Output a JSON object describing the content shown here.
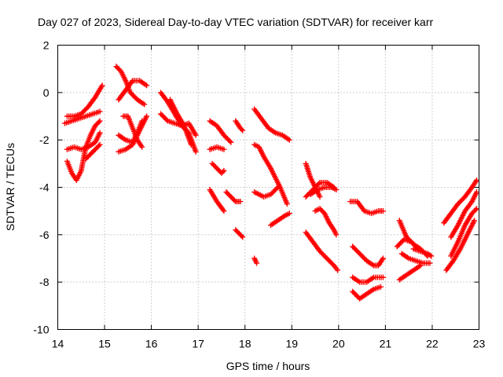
{
  "chart_data": {
    "type": "scatter",
    "title": "Day 027 of 2023, Sidereal Day-to-day VTEC variation (SDTVAR) for receiver karr",
    "xlabel": "GPS time / hours",
    "ylabel": "SDTVAR / TECUs",
    "xlim": [
      14,
      23
    ],
    "ylim": [
      -10,
      2
    ],
    "xticks": [
      "14",
      "15",
      "16",
      "17",
      "18",
      "19",
      "20",
      "21",
      "22",
      "23"
    ],
    "yticks": [
      "-10",
      "-8",
      "-6",
      "-4",
      "-2",
      "0",
      "2"
    ],
    "grid": true,
    "marker": "+",
    "color": "#ff0000",
    "series": [
      {
        "name": "arc-1",
        "x": [
          14.2,
          14.35,
          14.5,
          14.65,
          14.8,
          14.95
        ],
        "y": [
          -1.0,
          -1.0,
          -0.9,
          -0.6,
          -0.2,
          0.3
        ]
      },
      {
        "name": "arc-2",
        "x": [
          14.15,
          14.3,
          14.45,
          14.6,
          14.75,
          14.9
        ],
        "y": [
          -1.3,
          -1.2,
          -1.1,
          -1.0,
          -0.9,
          -0.8
        ]
      },
      {
        "name": "arc-3",
        "x": [
          14.2,
          14.35,
          14.5,
          14.65,
          14.8,
          14.9
        ],
        "y": [
          -2.4,
          -2.3,
          -2.4,
          -2.3,
          -2.1,
          -1.7
        ]
      },
      {
        "name": "arc-4",
        "x": [
          14.2,
          14.3,
          14.4,
          14.5,
          14.6,
          14.7,
          14.8,
          14.9
        ],
        "y": [
          -2.9,
          -3.4,
          -3.7,
          -3.3,
          -2.3,
          -1.8,
          -1.4,
          -1.2
        ]
      },
      {
        "name": "arc-5",
        "x": [
          14.6,
          14.7,
          14.8,
          14.9
        ],
        "y": [
          -2.8,
          -2.6,
          -2.4,
          -2.2
        ]
      },
      {
        "name": "arc-6",
        "x": [
          15.25,
          15.35,
          15.45,
          15.55,
          15.7,
          15.85
        ],
        "y": [
          1.1,
          0.9,
          0.5,
          0.0,
          -0.3,
          -0.5
        ]
      },
      {
        "name": "arc-7",
        "x": [
          15.3,
          15.45,
          15.6,
          15.75,
          15.9
        ],
        "y": [
          -0.3,
          0.1,
          0.5,
          0.5,
          0.3
        ]
      },
      {
        "name": "arc-8",
        "x": [
          15.3,
          15.45,
          15.6,
          15.7,
          15.8,
          15.9
        ],
        "y": [
          -2.5,
          -2.4,
          -2.2,
          -1.8,
          -1.4,
          -1.0
        ]
      },
      {
        "name": "arc-9",
        "x": [
          15.3,
          15.45,
          15.6,
          15.7,
          15.8
        ],
        "y": [
          -1.8,
          -2.0,
          -2.1,
          -1.7,
          -1.2
        ]
      },
      {
        "name": "arc-10",
        "x": [
          15.4,
          15.5,
          15.6,
          15.7,
          15.8
        ],
        "y": [
          -1.0,
          -1.0,
          -1.5,
          -2.0,
          -2.3
        ]
      },
      {
        "name": "arc-11",
        "x": [
          16.2,
          16.35,
          16.5,
          16.65,
          16.8,
          16.95
        ],
        "y": [
          0.0,
          -0.4,
          -0.9,
          -1.4,
          -1.7,
          -2.5
        ]
      },
      {
        "name": "arc-12",
        "x": [
          16.2,
          16.35,
          16.5,
          16.65,
          16.8,
          16.95
        ],
        "y": [
          -0.9,
          -1.2,
          -1.3,
          -1.4,
          -1.3,
          -1.8
        ]
      },
      {
        "name": "arc-13",
        "x": [
          16.4,
          16.55,
          16.7,
          16.85
        ],
        "y": [
          -0.3,
          -0.9,
          -1.4,
          -2.2
        ]
      },
      {
        "name": "arc-14",
        "x": [
          17.25,
          17.4,
          17.55,
          17.7
        ],
        "y": [
          -1.2,
          -1.4,
          -1.8,
          -2.1
        ]
      },
      {
        "name": "arc-15",
        "x": [
          17.25,
          17.4,
          17.55
        ],
        "y": [
          -2.4,
          -2.3,
          -2.4
        ]
      },
      {
        "name": "arc-16",
        "x": [
          17.3,
          17.4,
          17.5,
          17.55
        ],
        "y": [
          -3.0,
          -3.2,
          -3.4,
          -3.3
        ]
      },
      {
        "name": "arc-17",
        "x": [
          17.25,
          17.4,
          17.55
        ],
        "y": [
          -4.1,
          -4.6,
          -5.0
        ]
      },
      {
        "name": "arc-18",
        "x": [
          17.6,
          17.7,
          17.8,
          17.9
        ],
        "y": [
          -4.2,
          -4.4,
          -4.6,
          -4.6
        ]
      },
      {
        "name": "arc-19",
        "x": [
          17.8,
          17.9,
          17.95
        ],
        "y": [
          -5.8,
          -6.0,
          -6.1
        ]
      },
      {
        "name": "arc-20",
        "x": [
          17.8,
          17.9,
          17.95
        ],
        "y": [
          -1.2,
          -1.5,
          -1.6
        ]
      },
      {
        "name": "arc-21",
        "x": [
          18.2,
          18.35,
          18.5,
          18.65,
          18.8,
          18.95
        ],
        "y": [
          -0.7,
          -1.1,
          -1.5,
          -1.7,
          -1.8,
          -2.0
        ]
      },
      {
        "name": "arc-22",
        "x": [
          18.2,
          18.3,
          18.4,
          18.55,
          18.65,
          18.75,
          18.9
        ],
        "y": [
          -2.2,
          -2.3,
          -2.7,
          -3.2,
          -3.6,
          -4.0,
          -4.7
        ]
      },
      {
        "name": "arc-23",
        "x": [
          18.2,
          18.4,
          18.55,
          18.7
        ],
        "y": [
          -4.2,
          -4.4,
          -4.3,
          -4.0
        ]
      },
      {
        "name": "arc-24",
        "x": [
          18.55,
          18.7,
          18.85,
          18.95
        ],
        "y": [
          -5.6,
          -5.4,
          -5.2,
          -5.1
        ]
      },
      {
        "name": "arc-25",
        "x": [
          18.2,
          18.25
        ],
        "y": [
          -7.0,
          -7.2
        ]
      },
      {
        "name": "arc-26",
        "x": [
          19.3,
          19.4,
          19.5,
          19.6
        ],
        "y": [
          -3.0,
          -3.6,
          -4.0,
          -4.4
        ]
      },
      {
        "name": "arc-27",
        "x": [
          19.3,
          19.45,
          19.6,
          19.75,
          19.9
        ],
        "y": [
          -4.4,
          -4.1,
          -3.8,
          -3.8,
          -4.0
        ]
      },
      {
        "name": "arc-28",
        "x": [
          19.4,
          19.55,
          19.7,
          19.85,
          19.95
        ],
        "y": [
          -4.3,
          -4.1,
          -4.0,
          -4.0,
          -4.1
        ]
      },
      {
        "name": "arc-29",
        "x": [
          19.5,
          19.6,
          19.7,
          19.8,
          19.9,
          19.95
        ],
        "y": [
          -5.0,
          -4.9,
          -5.1,
          -5.5,
          -5.8,
          -6.0
        ]
      },
      {
        "name": "arc-30",
        "x": [
          19.3,
          19.45,
          19.6,
          19.75,
          19.9,
          19.98
        ],
        "y": [
          -5.9,
          -6.3,
          -6.7,
          -7.0,
          -7.3,
          -7.5
        ]
      },
      {
        "name": "arc-31",
        "x": [
          20.25,
          20.4,
          20.55,
          20.7,
          20.85,
          20.95
        ],
        "y": [
          -4.6,
          -4.6,
          -5.0,
          -5.1,
          -5.0,
          -5.0
        ]
      },
      {
        "name": "arc-32",
        "x": [
          20.3,
          20.45,
          20.6,
          20.75,
          20.85,
          20.95
        ],
        "y": [
          -6.5,
          -6.8,
          -7.1,
          -7.3,
          -7.3,
          -7.0
        ]
      },
      {
        "name": "arc-33",
        "x": [
          20.3,
          20.45,
          20.6,
          20.75,
          20.95
        ],
        "y": [
          -7.8,
          -8.0,
          -8.0,
          -7.8,
          -7.8
        ]
      },
      {
        "name": "arc-34",
        "x": [
          20.3,
          20.45,
          20.6,
          20.75,
          20.9
        ],
        "y": [
          -8.4,
          -8.7,
          -8.5,
          -8.3,
          -8.2
        ]
      },
      {
        "name": "arc-35",
        "x": [
          21.3,
          21.45,
          21.6,
          21.75,
          21.9
        ],
        "y": [
          -5.4,
          -6.1,
          -6.4,
          -6.6,
          -6.9
        ]
      },
      {
        "name": "arc-36",
        "x": [
          21.25,
          21.4,
          21.55,
          21.7
        ],
        "y": [
          -6.5,
          -6.2,
          -6.3,
          -6.6
        ]
      },
      {
        "name": "arc-37",
        "x": [
          21.35,
          21.5,
          21.65,
          21.8,
          21.95
        ],
        "y": [
          -6.8,
          -7.0,
          -7.1,
          -7.2,
          -7.2
        ]
      },
      {
        "name": "arc-38",
        "x": [
          21.3,
          21.45,
          21.6,
          21.75
        ],
        "y": [
          -7.9,
          -7.7,
          -7.5,
          -7.3
        ]
      },
      {
        "name": "arc-39",
        "x": [
          21.6,
          21.75,
          21.9,
          21.98
        ],
        "y": [
          -6.6,
          -6.7,
          -6.8,
          -6.9
        ]
      },
      {
        "name": "arc-40",
        "x": [
          22.25,
          22.4,
          22.55,
          22.7,
          22.85,
          22.95
        ],
        "y": [
          -5.5,
          -5.1,
          -4.7,
          -4.4,
          -4.0,
          -3.7
        ]
      },
      {
        "name": "arc-41",
        "x": [
          22.3,
          22.45,
          22.6,
          22.75,
          22.9
        ],
        "y": [
          -7.5,
          -7.1,
          -6.6,
          -6.0,
          -5.4
        ]
      },
      {
        "name": "arc-42",
        "x": [
          22.4,
          22.55,
          22.7,
          22.85,
          22.95
        ],
        "y": [
          -6.9,
          -6.3,
          -5.6,
          -5.1,
          -4.9
        ]
      },
      {
        "name": "arc-43",
        "x": [
          22.4,
          22.55,
          22.7,
          22.85,
          22.95
        ],
        "y": [
          -6.1,
          -5.6,
          -5.0,
          -4.6,
          -4.2
        ]
      }
    ]
  }
}
